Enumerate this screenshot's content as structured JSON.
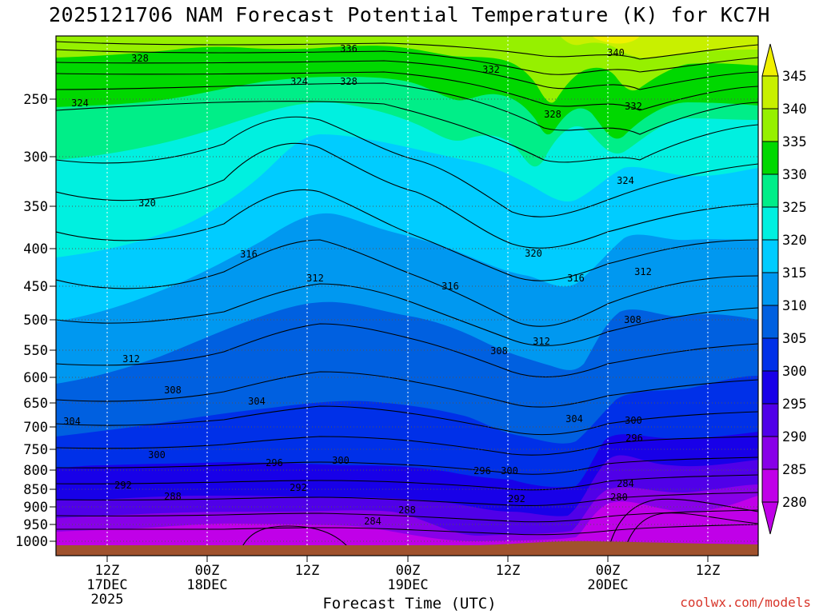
{
  "title": "2025121706 NAM Forecast Potential Temperature (K) for KC7H",
  "credit": "coolwx.com/models",
  "chart_data": {
    "type": "heatmap",
    "title": "2025121706 NAM Forecast Potential Temperature (K) for KC7H",
    "xlabel": "Forecast Time (UTC)",
    "ylabel": "",
    "y_scale": "pressure (hPa), inverted",
    "y_ticks": [
      250,
      300,
      350,
      400,
      450,
      500,
      550,
      600,
      650,
      700,
      750,
      800,
      850,
      900,
      950,
      1000
    ],
    "x_ticks": [
      {
        "line1": "12Z",
        "line2": "17DEC",
        "line3": "2025"
      },
      {
        "line1": "00Z",
        "line2": "18DEC",
        "line3": ""
      },
      {
        "line1": "12Z",
        "line2": "",
        "line3": ""
      },
      {
        "line1": "00Z",
        "line2": "19DEC",
        "line3": ""
      },
      {
        "line1": "12Z",
        "line2": "",
        "line3": ""
      },
      {
        "line1": "00Z",
        "line2": "20DEC",
        "line3": ""
      },
      {
        "line1": "12Z",
        "line2": "",
        "line3": ""
      }
    ],
    "colorbar_levels": [
      345,
      340,
      335,
      330,
      325,
      320,
      315,
      310,
      305,
      300,
      295,
      290,
      285,
      280
    ],
    "colorbar_colors": [
      "#f0f000",
      "#c8f000",
      "#96f000",
      "#00d800",
      "#00ee88",
      "#00f0e0",
      "#00ccff",
      "#0098f0",
      "#0060e0",
      "#0030e8",
      "#1800e8",
      "#5000e8",
      "#8800e8",
      "#c000e8"
    ],
    "contour_labels": [
      {
        "text": "328"
      },
      {
        "text": "336"
      },
      {
        "text": "340"
      },
      {
        "text": "332"
      },
      {
        "text": "324"
      },
      {
        "text": "328"
      },
      {
        "text": "332"
      },
      {
        "text": "328"
      },
      {
        "text": "324"
      },
      {
        "text": "324"
      },
      {
        "text": "320"
      },
      {
        "text": "320"
      },
      {
        "text": "316"
      },
      {
        "text": "316"
      },
      {
        "text": "316"
      },
      {
        "text": "312"
      },
      {
        "text": "312"
      },
      {
        "text": "312"
      },
      {
        "text": "312"
      },
      {
        "text": "308"
      },
      {
        "text": "308"
      },
      {
        "text": "308"
      },
      {
        "text": "304"
      },
      {
        "text": "304"
      },
      {
        "text": "304"
      },
      {
        "text": "300"
      },
      {
        "text": "300"
      },
      {
        "text": "300"
      },
      {
        "text": "296"
      },
      {
        "text": "300"
      },
      {
        "text": "296"
      },
      {
        "text": "296"
      },
      {
        "text": "292"
      },
      {
        "text": "292"
      },
      {
        "text": "292"
      },
      {
        "text": "288"
      },
      {
        "text": "288"
      },
      {
        "text": "284"
      },
      {
        "text": "284"
      },
      {
        "text": "280"
      }
    ]
  }
}
